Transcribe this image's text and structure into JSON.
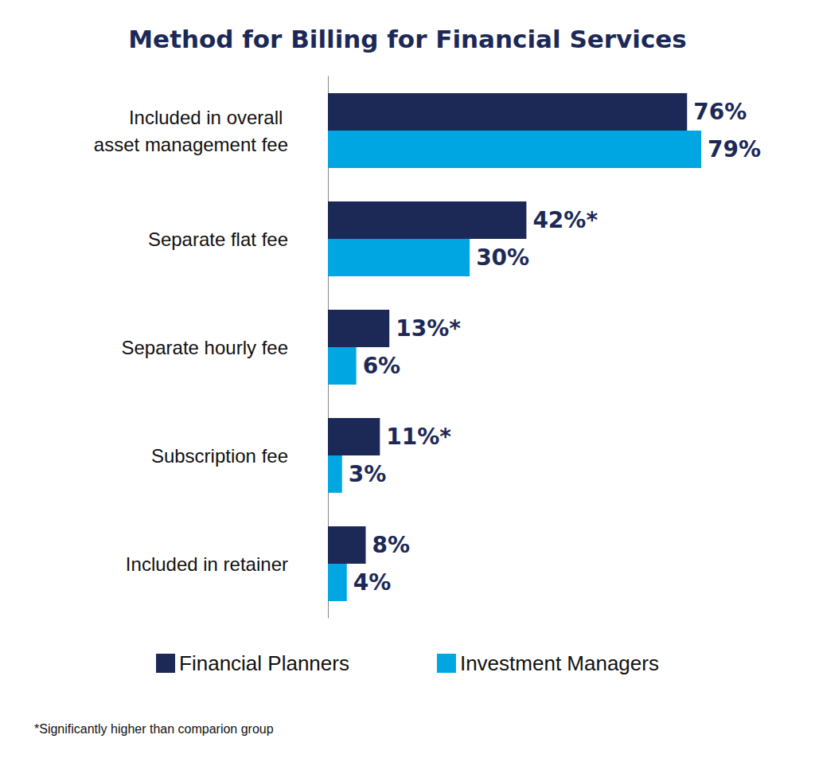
{
  "chart_data": {
    "type": "bar",
    "title": "Method for Billing for Financial Services",
    "orientation": "horizontal",
    "categories": [
      "Included in overall asset management fee",
      "Separate flat fee",
      "Separate hourly fee",
      "Subscription fee",
      "Included in retainer"
    ],
    "series": [
      {
        "name": "Financial Planners",
        "color": "#1c2957",
        "values": [
          76,
          42,
          13,
          11,
          8
        ],
        "value_labels": [
          "76%",
          "42%*",
          "13%*",
          "11%*",
          "8%"
        ]
      },
      {
        "name": "Investment Managers",
        "color": "#00a6e2",
        "values": [
          79,
          30,
          6,
          3,
          4
        ],
        "value_labels": [
          "79%",
          "30%",
          "6%",
          "3%",
          "4%"
        ]
      }
    ],
    "data_labels": true,
    "tick_labels": "y",
    "grid": false,
    "legend": "bottom",
    "footnote": "*Significantly higher than comparion group"
  }
}
